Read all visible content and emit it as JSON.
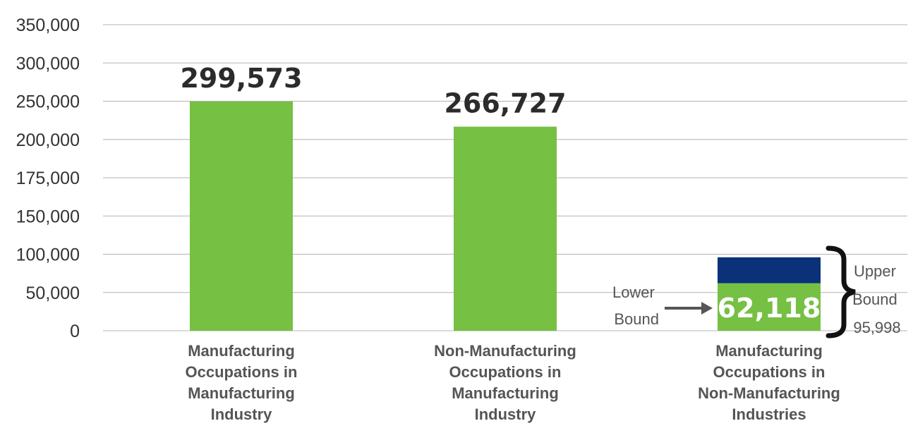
{
  "chart_data": {
    "type": "bar",
    "y_tick_labels": [
      "0",
      "50,000",
      "100,000",
      "150,000",
      "175,000",
      "200,000",
      "250,000",
      "300,000",
      "350,000"
    ],
    "categories": [
      [
        "Manufacturing",
        "Occupations in",
        "Manufacturing",
        "Industry"
      ],
      [
        "Non-Manufacturing",
        "Occupations in",
        "Manufacturing",
        "Industry"
      ],
      [
        "Manufacturing",
        "Occupations in",
        "Non-Manufacturing",
        "Industries"
      ]
    ],
    "bars": [
      {
        "value": 299573,
        "label": "299,573",
        "label_position": "above",
        "color": "#76c043"
      },
      {
        "value": 266727,
        "label": "266,727",
        "label_position": "above",
        "color": "#76c043"
      },
      {
        "value": 62118,
        "label": "62,118",
        "label_position": "inside",
        "color": "#76c043",
        "upper_value": 95998,
        "upper_color": "#0b3278"
      }
    ],
    "annotations": {
      "lower_bound": [
        "Lower",
        "Bound"
      ],
      "upper_bound": [
        "Upper",
        "Bound",
        "95,998"
      ]
    },
    "grid": true,
    "colors": {
      "bar": "#76c043",
      "upper_segment": "#0b3278",
      "grid": "#b3b3b3"
    }
  }
}
